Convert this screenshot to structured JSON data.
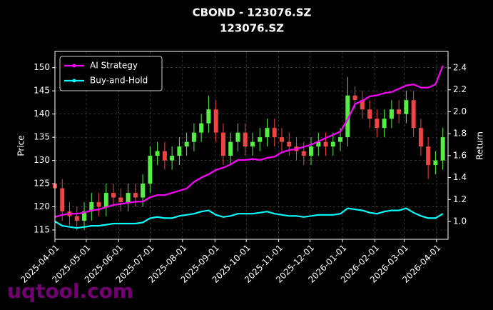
{
  "chart_data": {
    "type": "candlestick",
    "title": "CBOND - 123076.SZ",
    "subtitle": "123076.SZ",
    "ylabel": "Price",
    "y2label": "Return",
    "watermark": "uqtool.com",
    "grid": true,
    "legend": "upper left",
    "xlim": [
      "2025-04-01",
      "2026-04-12"
    ],
    "xticks": [
      "2025-04-01",
      "2025-05-01",
      "2025-06-01",
      "2025-07-01",
      "2025-08-01",
      "2025-09-01",
      "2025-10-01",
      "2025-11-01",
      "2025-12-01",
      "2026-01-01",
      "2026-02-01",
      "2026-03-01",
      "2026-04-01"
    ],
    "ylim": [
      113,
      153.5
    ],
    "yticks": [
      115,
      120,
      125,
      130,
      135,
      140,
      145,
      150
    ],
    "y2lim": [
      0.837,
      2.55
    ],
    "y2ticks": [
      {
        "value": 1,
        "label": "1.0"
      },
      1.2,
      1.4,
      1.6,
      1.8,
      {
        "value": 2,
        "label": "2.0"
      },
      2.2,
      2.4
    ],
    "candles": {
      "up_color": "#55ee44",
      "down_color": "#ee4444",
      "x": [
        "2025-04-01",
        "2025-04-08",
        "2025-04-15",
        "2025-04-22",
        "2025-04-29",
        "2025-05-06",
        "2025-05-13",
        "2025-05-20",
        "2025-05-27",
        "2025-06-03",
        "2025-06-10",
        "2025-06-17",
        "2025-06-24",
        "2025-07-01",
        "2025-07-08",
        "2025-07-15",
        "2025-07-22",
        "2025-07-29",
        "2025-08-05",
        "2025-08-12",
        "2025-08-19",
        "2025-08-26",
        "2025-09-02",
        "2025-09-09",
        "2025-09-16",
        "2025-09-23",
        "2025-09-30",
        "2025-10-07",
        "2025-10-14",
        "2025-10-21",
        "2025-10-28",
        "2025-11-04",
        "2025-11-11",
        "2025-11-18",
        "2025-11-25",
        "2025-12-02",
        "2025-12-09",
        "2025-12-16",
        "2025-12-23",
        "2025-12-30",
        "2026-01-06",
        "2026-01-13",
        "2026-01-20",
        "2026-01-27",
        "2026-02-03",
        "2026-02-10",
        "2026-02-17",
        "2026-02-24",
        "2026-03-03",
        "2026-03-10",
        "2026-03-17",
        "2026-03-24",
        "2026-03-31",
        "2026-04-07"
      ],
      "open": [
        125,
        124,
        119,
        118,
        117,
        119,
        121,
        120,
        123,
        122,
        121,
        123,
        122,
        125,
        131,
        132,
        130,
        131,
        133,
        134,
        136,
        138,
        141,
        136,
        131,
        134,
        136,
        133,
        134,
        135,
        137,
        135,
        134,
        133,
        132,
        131,
        133,
        134,
        133,
        134,
        135,
        144,
        143,
        141,
        139,
        137,
        139,
        141,
        140,
        143,
        137,
        133,
        129,
        130
      ],
      "high": [
        127,
        126,
        121,
        120,
        121,
        123,
        123,
        125,
        125,
        124,
        125,
        125,
        127,
        133,
        134,
        134,
        133,
        135,
        136,
        138,
        140,
        144,
        143,
        138,
        136,
        138,
        138,
        136,
        137,
        139,
        139,
        137,
        136,
        135,
        134,
        135,
        136,
        136,
        136,
        137,
        148,
        146,
        145,
        143,
        141,
        141,
        143,
        143,
        145,
        145,
        139,
        135,
        132,
        137
      ],
      "low": [
        122,
        117,
        116,
        115,
        115,
        117,
        118,
        118,
        120,
        119,
        119,
        120,
        120,
        123,
        129,
        128,
        128,
        129,
        131,
        132,
        134,
        136,
        134,
        129,
        129,
        132,
        131,
        131,
        132,
        133,
        133,
        132,
        131,
        130,
        129,
        129,
        131,
        131,
        131,
        132,
        133,
        141,
        139,
        137,
        135,
        135,
        137,
        138,
        138,
        135,
        131,
        126,
        127,
        128
      ],
      "close": [
        124,
        119,
        118,
        117,
        119,
        121,
        120,
        123,
        122,
        121,
        123,
        122,
        125,
        131,
        132,
        130,
        131,
        133,
        134,
        136,
        138,
        141,
        136,
        131,
        134,
        136,
        133,
        134,
        135,
        137,
        135,
        134,
        133,
        132,
        131,
        133,
        134,
        133,
        134,
        135,
        144,
        143,
        141,
        139,
        137,
        139,
        141,
        140,
        143,
        137,
        133,
        129,
        130,
        135
      ]
    },
    "series": [
      {
        "name": "AI Strategy",
        "color": "#ff00ff",
        "axis": "y2",
        "values": [
          1.04,
          1.06,
          1.07,
          1.07,
          1.08,
          1.1,
          1.11,
          1.13,
          1.15,
          1.16,
          1.17,
          1.18,
          1.18,
          1.22,
          1.24,
          1.24,
          1.26,
          1.28,
          1.3,
          1.36,
          1.4,
          1.43,
          1.47,
          1.49,
          1.52,
          1.56,
          1.56,
          1.57,
          1.56,
          1.58,
          1.59,
          1.63,
          1.65,
          1.66,
          1.68,
          1.7,
          1.73,
          1.76,
          1.79,
          1.82,
          1.93,
          2.07,
          2.1,
          2.14,
          2.15,
          2.17,
          2.18,
          2.21,
          2.24,
          2.25,
          2.22,
          2.22,
          2.25,
          2.42
        ]
      },
      {
        "name": "Buy-and-Hold",
        "color": "#00ffff",
        "axis": "y2",
        "values": [
          1.0,
          0.96,
          0.95,
          0.94,
          0.95,
          0.96,
          0.96,
          0.97,
          0.98,
          0.98,
          0.98,
          0.98,
          0.99,
          1.03,
          1.04,
          1.03,
          1.03,
          1.05,
          1.06,
          1.07,
          1.09,
          1.1,
          1.06,
          1.04,
          1.05,
          1.07,
          1.07,
          1.07,
          1.08,
          1.09,
          1.07,
          1.06,
          1.05,
          1.05,
          1.04,
          1.05,
          1.06,
          1.06,
          1.06,
          1.07,
          1.12,
          1.11,
          1.1,
          1.08,
          1.07,
          1.09,
          1.1,
          1.1,
          1.12,
          1.08,
          1.05,
          1.03,
          1.03,
          1.07
        ]
      }
    ]
  }
}
